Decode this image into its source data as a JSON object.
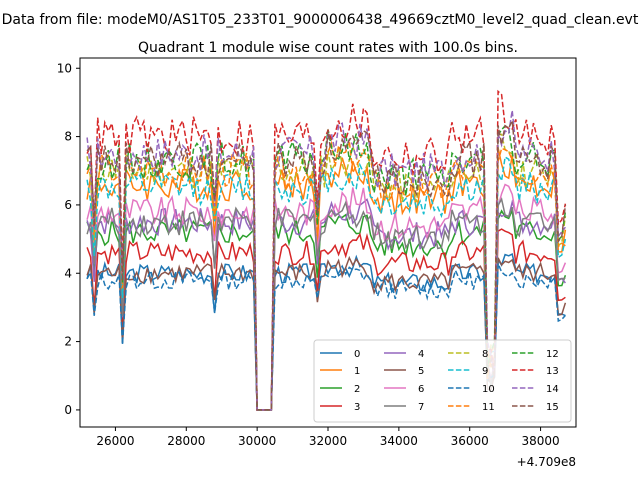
{
  "suptitle": "Data from file: modeM0/AS1T05_233T01_9000006438_49669cztM0_level2_quad_clean.evt",
  "chart_data": {
    "type": "line",
    "title": "Quadrant 1 module wise count rates with 100.0s bins.",
    "xlabel": "",
    "ylabel": "",
    "x_offset_label": "+4.709e8",
    "xlim": [
      25000,
      39000
    ],
    "ylim": [
      -0.5,
      10.3
    ],
    "xticks": [
      26000,
      28000,
      30000,
      32000,
      34000,
      36000,
      38000
    ],
    "yticks": [
      0,
      2,
      4,
      6,
      8,
      10
    ],
    "grid": false,
    "legend_position": "lower-right",
    "legend_columns": 4,
    "series": [
      {
        "name": "0",
        "color": "#1f77b4",
        "dash": "solid",
        "base": 4.0
      },
      {
        "name": "1",
        "color": "#ff7f0e",
        "dash": "solid",
        "base": 6.6
      },
      {
        "name": "2",
        "color": "#2ca02c",
        "dash": "solid",
        "base": 5.2
      },
      {
        "name": "3",
        "color": "#d62728",
        "dash": "solid",
        "base": 4.6
      },
      {
        "name": "4",
        "color": "#9467bd",
        "dash": "solid",
        "base": 5.5
      },
      {
        "name": "5",
        "color": "#8c564b",
        "dash": "solid",
        "base": 4.0
      },
      {
        "name": "6",
        "color": "#e377c2",
        "dash": "solid",
        "base": 5.8
      },
      {
        "name": "7",
        "color": "#7f7f7f",
        "dash": "solid",
        "base": 5.5
      },
      {
        "name": "8",
        "color": "#bcbd22",
        "dash": "dashed",
        "base": 7.0
      },
      {
        "name": "9",
        "color": "#17becf",
        "dash": "dashed",
        "base": 6.5
      },
      {
        "name": "10",
        "color": "#1f77b4",
        "dash": "dashed",
        "base": 3.8
      },
      {
        "name": "11",
        "color": "#ff7f0e",
        "dash": "dashed",
        "base": 7.0
      },
      {
        "name": "12",
        "color": "#2ca02c",
        "dash": "dashed",
        "base": 7.3
      },
      {
        "name": "13",
        "color": "#d62728",
        "dash": "dashed",
        "base": 8.0
      },
      {
        "name": "14",
        "color": "#9467bd",
        "dash": "dashed",
        "base": 7.5
      },
      {
        "name": "15",
        "color": "#8c564b",
        "dash": "dashed",
        "base": 7.3
      }
    ]
  }
}
